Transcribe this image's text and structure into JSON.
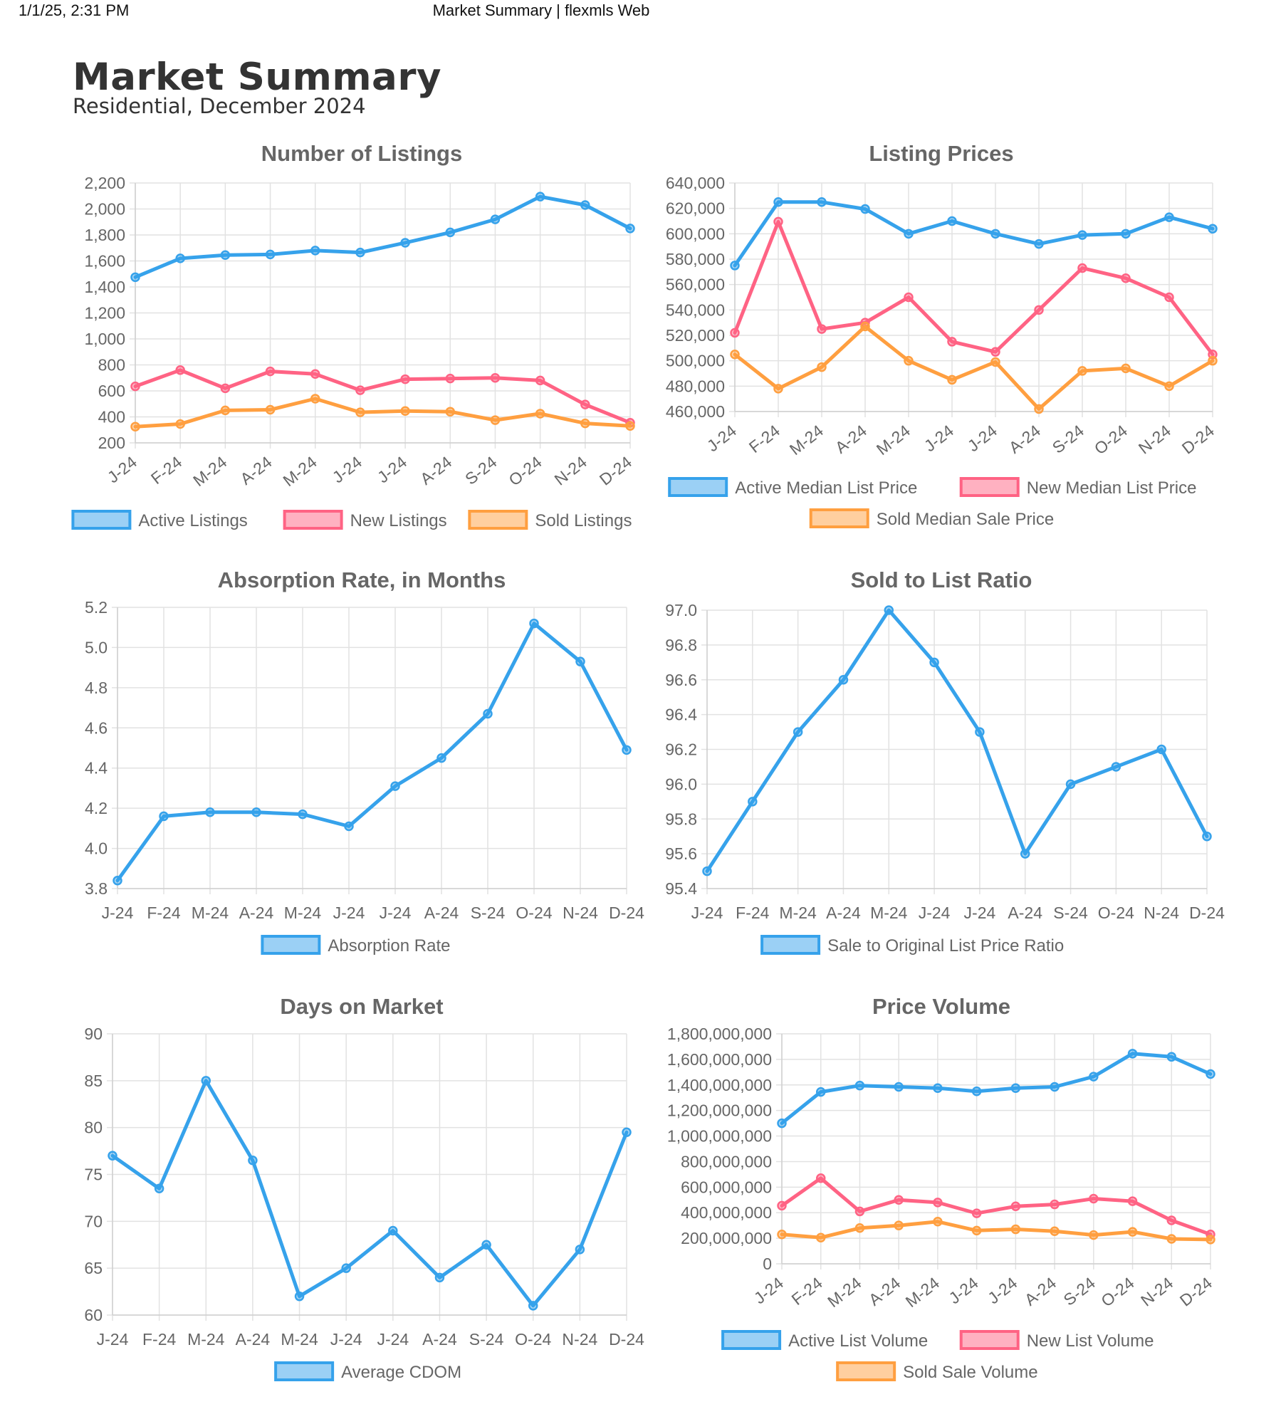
{
  "header": {
    "datetime": "1/1/25, 2:31 PM",
    "print_title": "Market Summary | flexmls Web"
  },
  "page": {
    "title": "Market Summary",
    "subtitle": "Residential, December 2024"
  },
  "colors": {
    "blue": "#36A2EB",
    "pink": "#FF6384",
    "orange": "#FF9F40",
    "grid": "#e2e2e2",
    "text": "#666666"
  },
  "chart_data": [
    {
      "id": "listings",
      "type": "line",
      "title": "Number of Listings",
      "categories": [
        "J-24",
        "F-24",
        "M-24",
        "A-24",
        "M-24",
        "J-24",
        "J-24",
        "A-24",
        "S-24",
        "O-24",
        "N-24",
        "D-24"
      ],
      "xticks_rotated": true,
      "ylim": [
        200,
        2200
      ],
      "yticks": [
        200,
        400,
        600,
        800,
        1000,
        1200,
        1400,
        1600,
        1800,
        2000,
        2200
      ],
      "series": [
        {
          "name": "Active Listings",
          "color": "#36A2EB",
          "values": [
            1475,
            1620,
            1645,
            1650,
            1680,
            1665,
            1740,
            1820,
            1920,
            2095,
            2030,
            1850
          ]
        },
        {
          "name": "New Listings",
          "color": "#FF6384",
          "values": [
            635,
            760,
            620,
            750,
            730,
            605,
            690,
            695,
            700,
            680,
            495,
            355
          ]
        },
        {
          "name": "Sold Listings",
          "color": "#FF9F40",
          "values": [
            325,
            345,
            450,
            455,
            540,
            435,
            445,
            440,
            375,
            425,
            350,
            330
          ]
        }
      ],
      "legend": "bottom"
    },
    {
      "id": "prices",
      "type": "line",
      "title": "Listing Prices",
      "categories": [
        "J-24",
        "F-24",
        "M-24",
        "A-24",
        "M-24",
        "J-24",
        "J-24",
        "A-24",
        "S-24",
        "O-24",
        "N-24",
        "D-24"
      ],
      "xticks_rotated": true,
      "ylim": [
        460000,
        640000
      ],
      "yticks": [
        460000,
        480000,
        500000,
        520000,
        540000,
        560000,
        580000,
        600000,
        620000,
        640000
      ],
      "series": [
        {
          "name": "Active Median List Price",
          "color": "#36A2EB",
          "values": [
            575000,
            625000,
            625000,
            619500,
            600000,
            610000,
            600000,
            592000,
            599000,
            600000,
            613000,
            604000
          ]
        },
        {
          "name": "New Median List Price",
          "color": "#FF6384",
          "values": [
            522000,
            609500,
            525000,
            530000,
            550000,
            515000,
            507000,
            540000,
            573000,
            565000,
            550000,
            505000
          ]
        },
        {
          "name": "Sold Median Sale Price",
          "color": "#FF9F40",
          "values": [
            505000,
            478000,
            495000,
            527000,
            500000,
            485000,
            499000,
            462000,
            492000,
            494000,
            480000,
            500000
          ]
        }
      ],
      "legend": "bottom"
    },
    {
      "id": "absorption",
      "type": "line",
      "title": "Absorption Rate, in Months",
      "categories": [
        "J-24",
        "F-24",
        "M-24",
        "A-24",
        "M-24",
        "J-24",
        "J-24",
        "A-24",
        "S-24",
        "O-24",
        "N-24",
        "D-24"
      ],
      "xticks_rotated": false,
      "ylim": [
        3.8,
        5.2
      ],
      "yticks": [
        "3.8",
        "4.0",
        "4.2",
        "4.4",
        "4.6",
        "4.8",
        "5.0",
        "5.2"
      ],
      "series": [
        {
          "name": "Absorption Rate",
          "color": "#36A2EB",
          "values": [
            3.84,
            4.16,
            4.18,
            4.18,
            4.17,
            4.11,
            4.31,
            4.45,
            4.67,
            5.12,
            4.93,
            4.49
          ]
        }
      ],
      "legend": "bottom"
    },
    {
      "id": "ratio",
      "type": "line",
      "title": "Sold to List Ratio",
      "categories": [
        "J-24",
        "F-24",
        "M-24",
        "A-24",
        "M-24",
        "J-24",
        "J-24",
        "A-24",
        "S-24",
        "O-24",
        "N-24",
        "D-24"
      ],
      "xticks_rotated": false,
      "ylim": [
        95.4,
        97.0
      ],
      "yticks": [
        "95.4",
        "95.6",
        "95.8",
        "96.0",
        "96.2",
        "96.4",
        "96.6",
        "96.8",
        "97.0"
      ],
      "series": [
        {
          "name": "Sale to Original List Price Ratio",
          "color": "#36A2EB",
          "values": [
            95.5,
            95.9,
            96.3,
            96.6,
            97.0,
            96.7,
            96.3,
            95.6,
            96.0,
            96.1,
            96.2,
            95.7
          ]
        }
      ],
      "legend": "bottom"
    },
    {
      "id": "dom",
      "type": "line",
      "title": "Days on Market",
      "categories": [
        "J-24",
        "F-24",
        "M-24",
        "A-24",
        "M-24",
        "J-24",
        "J-24",
        "A-24",
        "S-24",
        "O-24",
        "N-24",
        "D-24"
      ],
      "xticks_rotated": false,
      "ylim": [
        60,
        90
      ],
      "yticks": [
        60,
        65,
        70,
        75,
        80,
        85,
        90
      ],
      "series": [
        {
          "name": "Average CDOM",
          "color": "#36A2EB",
          "values": [
            77,
            73.5,
            85,
            76.5,
            62,
            65,
            69,
            64,
            67.5,
            61,
            67,
            79.5
          ]
        }
      ],
      "legend": "bottom"
    },
    {
      "id": "volume",
      "type": "line",
      "title": "Price Volume",
      "categories": [
        "J-24",
        "F-24",
        "M-24",
        "A-24",
        "M-24",
        "J-24",
        "J-24",
        "A-24",
        "S-24",
        "O-24",
        "N-24",
        "D-24"
      ],
      "xticks_rotated": true,
      "ylim": [
        0,
        1800000000
      ],
      "yticks": [
        0,
        200000000,
        400000000,
        600000000,
        800000000,
        1000000000,
        1200000000,
        1400000000,
        1600000000,
        1800000000
      ],
      "series": [
        {
          "name": "Active List Volume",
          "color": "#36A2EB",
          "values": [
            1100000000,
            1345000000,
            1395000000,
            1385000000,
            1375000000,
            1350000000,
            1375000000,
            1385000000,
            1465000000,
            1645000000,
            1620000000,
            1485000000
          ]
        },
        {
          "name": "New List Volume",
          "color": "#FF6384",
          "values": [
            455000000,
            670000000,
            410000000,
            500000000,
            480000000,
            395000000,
            450000000,
            465000000,
            510000000,
            490000000,
            340000000,
            230000000
          ]
        },
        {
          "name": "Sold Sale Volume",
          "color": "#FF9F40",
          "values": [
            230000000,
            205000000,
            280000000,
            300000000,
            330000000,
            260000000,
            270000000,
            255000000,
            225000000,
            250000000,
            195000000,
            190000000
          ]
        }
      ],
      "legend": "bottom"
    }
  ]
}
